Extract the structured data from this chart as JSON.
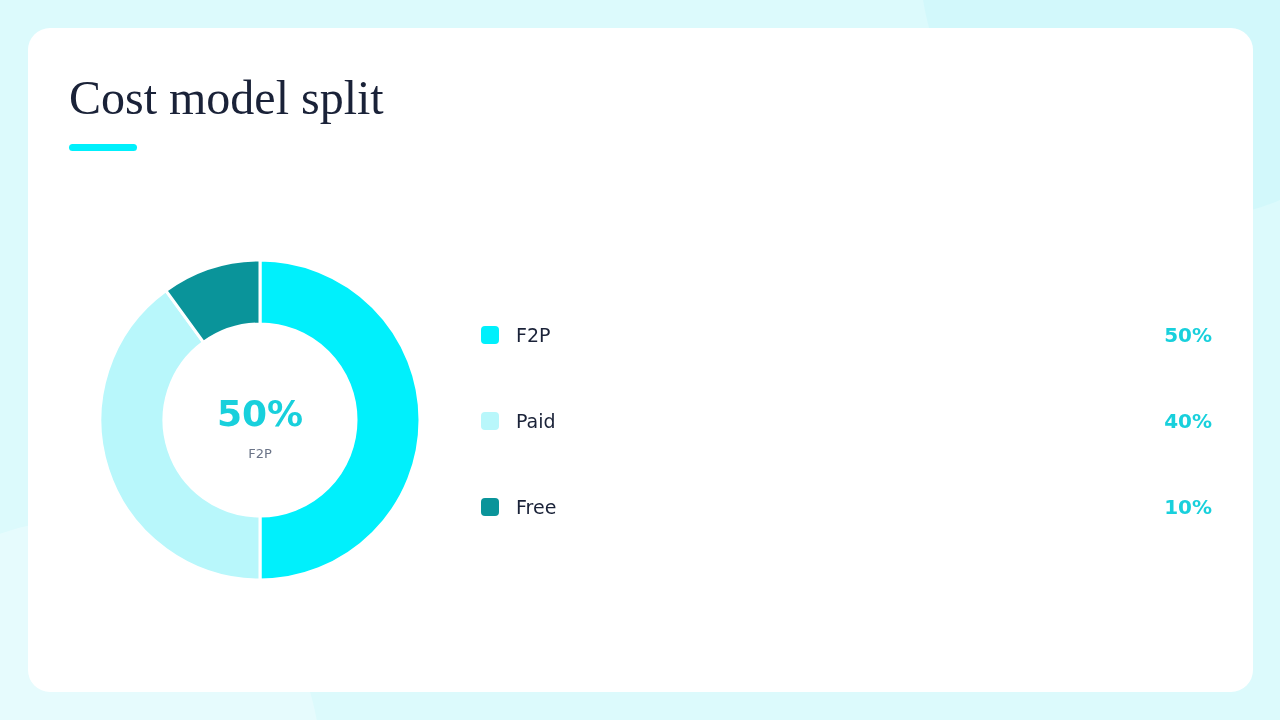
{
  "chart_data": {
    "type": "donut",
    "title": "Cost model split",
    "categories": [
      "F2P",
      "Paid",
      "Free"
    ],
    "values": [
      50,
      40,
      10
    ],
    "colors": [
      "#00f0fc",
      "#b8f7fb",
      "#0a949a"
    ],
    "value_labels": [
      "50%",
      "40%",
      "10%"
    ],
    "legend": "right",
    "annotations": [
      "50%",
      "F2P"
    ]
  }
}
